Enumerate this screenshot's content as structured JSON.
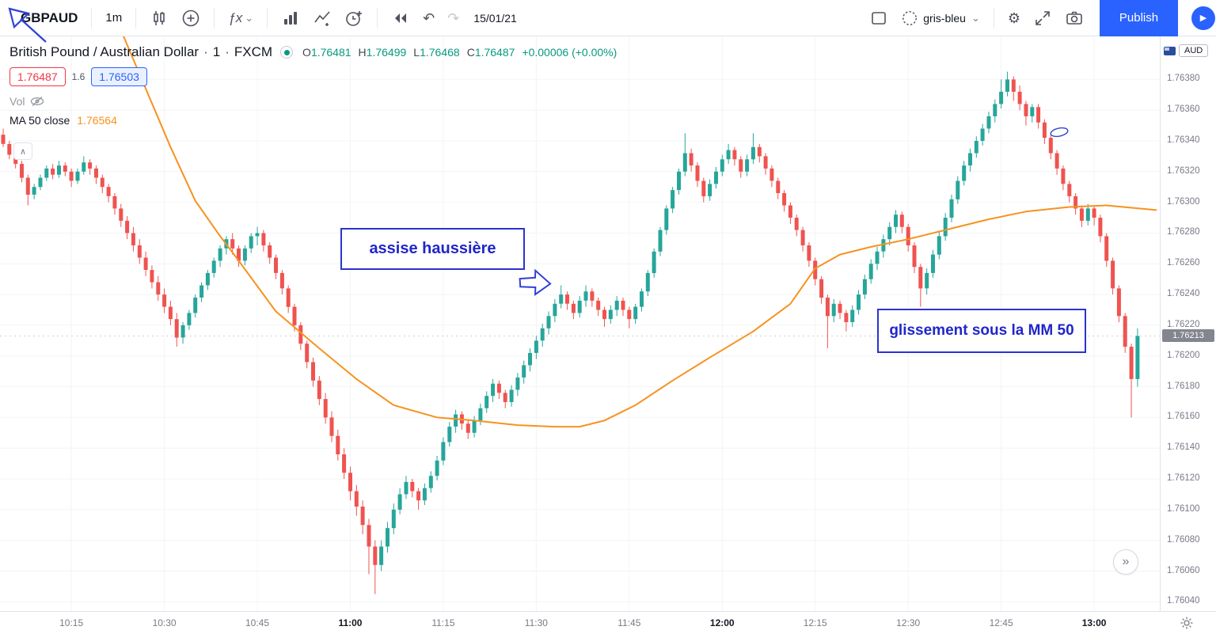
{
  "toolbar": {
    "symbol": "GBPAUD",
    "interval": "1m",
    "indicators_label": "ƒx",
    "date": "15/01/21",
    "layout_name": "gris-bleu",
    "publish_label": "Publish"
  },
  "icons": {
    "undo": "↶",
    "redo": "↷",
    "gear": "⚙",
    "chevron_down": "⌄",
    "scroll_right": "»",
    "collapse": "∧",
    "play": "▶"
  },
  "legend": {
    "name": "British Pound / Australian Dollar",
    "sep": "·",
    "interval": "1",
    "exchange": "FXCM",
    "ohlc": [
      {
        "label": "O",
        "value": "1.76481"
      },
      {
        "label": "H",
        "value": "1.76499"
      },
      {
        "label": "L",
        "value": "1.76468"
      },
      {
        "label": "C",
        "value": "1.76487"
      }
    ],
    "change": "+0.00006 (+0.00%)",
    "bid": "1.76487",
    "spread": "1.6",
    "ask": "1.76503",
    "vol_label": "Vol",
    "ma_label": "MA 50 close",
    "ma_value": "1.76564"
  },
  "annotations": {
    "box1": "assise haussière",
    "box2": "glissement sous la MM 50"
  },
  "axes": {
    "currency": "AUD"
  },
  "colors": {
    "accent": "#2962ff",
    "annotation_blue": "#2b33cf",
    "last_price_bg": "#83868e"
  },
  "chart_data": {
    "type": "candlestick",
    "symbol": "GBPAUD",
    "title": "British Pound / Australian Dollar · 1 · FXCM",
    "interval_minutes": 1,
    "start_time": "10:04",
    "end_time": "13:07",
    "price_base": 1.76,
    "pip": 1e-05,
    "visible_price_range": [
      1.76034,
      1.76408
    ],
    "last_price": 1.76213,
    "last_price_label": "1.76213",
    "up_color": "#26a69a",
    "down_color": "#ef5350",
    "ma50_color": "#f7921e",
    "ma50_label": "MA 50 close",
    "price_ticks": [
      "1.76380",
      "1.76360",
      "1.76340",
      "1.76320",
      "1.76300",
      "1.76280",
      "1.76260",
      "1.76240",
      "1.76220",
      "1.76200",
      "1.76180",
      "1.76160",
      "1.76140",
      "1.76120",
      "1.76100",
      "1.76080",
      "1.76060",
      "1.76040"
    ],
    "time_ticks": [
      {
        "label": "10:15",
        "minute_index": 11,
        "bold": false
      },
      {
        "label": "10:30",
        "minute_index": 26,
        "bold": false
      },
      {
        "label": "10:45",
        "minute_index": 41,
        "bold": false
      },
      {
        "label": "11:00",
        "minute_index": 56,
        "bold": true
      },
      {
        "label": "11:15",
        "minute_index": 71,
        "bold": false
      },
      {
        "label": "11:30",
        "minute_index": 86,
        "bold": false
      },
      {
        "label": "11:45",
        "minute_index": 101,
        "bold": false
      },
      {
        "label": "12:00",
        "minute_index": 116,
        "bold": true
      },
      {
        "label": "12:15",
        "minute_index": 131,
        "bold": false
      },
      {
        "label": "12:30",
        "minute_index": 146,
        "bold": false
      },
      {
        "label": "12:45",
        "minute_index": 161,
        "bold": false
      },
      {
        "label": "13:00",
        "minute_index": 176,
        "bold": true
      }
    ],
    "candles_pips": [
      [
        344,
        348,
        336,
        338
      ],
      [
        338,
        340,
        328,
        331
      ],
      [
        331,
        334,
        322,
        325
      ],
      [
        325,
        327,
        313,
        316
      ],
      [
        316,
        318,
        298,
        305
      ],
      [
        305,
        312,
        302,
        310
      ],
      [
        310,
        318,
        308,
        316
      ],
      [
        316,
        324,
        314,
        322
      ],
      [
        322,
        325,
        315,
        318
      ],
      [
        318,
        327,
        316,
        324
      ],
      [
        324,
        326,
        317,
        320
      ],
      [
        320,
        322,
        310,
        314
      ],
      [
        314,
        322,
        312,
        320
      ],
      [
        320,
        330,
        318,
        326
      ],
      [
        326,
        328,
        318,
        322
      ],
      [
        322,
        324,
        312,
        316
      ],
      [
        316,
        318,
        306,
        310
      ],
      [
        310,
        312,
        300,
        304
      ],
      [
        304,
        306,
        292,
        296
      ],
      [
        296,
        299,
        284,
        288
      ],
      [
        288,
        291,
        276,
        280
      ],
      [
        280,
        284,
        268,
        272
      ],
      [
        272,
        276,
        260,
        264
      ],
      [
        264,
        268,
        252,
        256
      ],
      [
        256,
        259,
        244,
        248
      ],
      [
        248,
        252,
        236,
        240
      ],
      [
        240,
        244,
        228,
        232
      ],
      [
        232,
        236,
        220,
        224
      ],
      [
        224,
        228,
        206,
        212
      ],
      [
        212,
        222,
        208,
        220
      ],
      [
        220,
        230,
        217,
        228
      ],
      [
        228,
        240,
        225,
        238
      ],
      [
        238,
        248,
        235,
        246
      ],
      [
        246,
        256,
        243,
        254
      ],
      [
        254,
        264,
        251,
        262
      ],
      [
        262,
        272,
        258,
        270
      ],
      [
        270,
        278,
        266,
        276
      ],
      [
        276,
        280,
        266,
        270
      ],
      [
        270,
        272,
        258,
        262
      ],
      [
        262,
        272,
        259,
        270
      ],
      [
        270,
        280,
        267,
        278
      ],
      [
        278,
        284,
        272,
        280
      ],
      [
        280,
        282,
        268,
        272
      ],
      [
        272,
        274,
        260,
        264
      ],
      [
        264,
        266,
        250,
        254
      ],
      [
        254,
        256,
        240,
        244
      ],
      [
        244,
        246,
        228,
        232
      ],
      [
        232,
        234,
        216,
        220
      ],
      [
        220,
        222,
        204,
        208
      ],
      [
        208,
        210,
        192,
        196
      ],
      [
        196,
        199,
        180,
        184
      ],
      [
        184,
        187,
        168,
        172
      ],
      [
        172,
        176,
        156,
        160
      ],
      [
        160,
        164,
        144,
        148
      ],
      [
        148,
        152,
        132,
        136
      ],
      [
        136,
        140,
        120,
        124
      ],
      [
        124,
        128,
        106,
        112
      ],
      [
        112,
        116,
        96,
        102
      ],
      [
        102,
        106,
        84,
        90
      ],
      [
        90,
        94,
        58,
        76
      ],
      [
        76,
        80,
        45,
        64
      ],
      [
        64,
        80,
        60,
        76
      ],
      [
        76,
        92,
        72,
        88
      ],
      [
        88,
        104,
        84,
        100
      ],
      [
        100,
        114,
        97,
        110
      ],
      [
        110,
        122,
        107,
        118
      ],
      [
        118,
        120,
        108,
        112
      ],
      [
        112,
        114,
        100,
        106
      ],
      [
        106,
        117,
        103,
        114
      ],
      [
        114,
        125,
        111,
        122
      ],
      [
        122,
        135,
        119,
        132
      ],
      [
        132,
        147,
        129,
        144
      ],
      [
        144,
        157,
        141,
        154
      ],
      [
        154,
        165,
        150,
        162
      ],
      [
        162,
        164,
        152,
        156
      ],
      [
        156,
        158,
        146,
        150
      ],
      [
        150,
        161,
        147,
        158
      ],
      [
        158,
        169,
        155,
        166
      ],
      [
        166,
        177,
        163,
        174
      ],
      [
        174,
        185,
        170,
        182
      ],
      [
        182,
        184,
        172,
        176
      ],
      [
        176,
        178,
        166,
        170
      ],
      [
        170,
        181,
        167,
        178
      ],
      [
        178,
        189,
        174,
        186
      ],
      [
        186,
        197,
        182,
        194
      ],
      [
        194,
        205,
        190,
        202
      ],
      [
        202,
        213,
        198,
        210
      ],
      [
        210,
        221,
        206,
        218
      ],
      [
        218,
        229,
        214,
        226
      ],
      [
        226,
        237,
        222,
        234
      ],
      [
        234,
        246,
        231,
        240
      ],
      [
        240,
        242,
        230,
        234
      ],
      [
        234,
        236,
        224,
        228
      ],
      [
        228,
        239,
        225,
        236
      ],
      [
        236,
        246,
        232,
        242
      ],
      [
        242,
        244,
        232,
        236
      ],
      [
        236,
        238,
        226,
        230
      ],
      [
        230,
        232,
        219,
        224
      ],
      [
        224,
        233,
        221,
        230
      ],
      [
        230,
        239,
        226,
        236
      ],
      [
        236,
        238,
        226,
        230
      ],
      [
        230,
        232,
        218,
        224
      ],
      [
        224,
        234,
        221,
        232
      ],
      [
        232,
        244,
        229,
        242
      ],
      [
        242,
        256,
        239,
        254
      ],
      [
        254,
        270,
        251,
        268
      ],
      [
        268,
        284,
        265,
        282
      ],
      [
        282,
        298,
        279,
        296
      ],
      [
        296,
        310,
        293,
        308
      ],
      [
        308,
        322,
        305,
        320
      ],
      [
        320,
        345,
        317,
        332
      ],
      [
        332,
        335,
        320,
        324
      ],
      [
        324,
        326,
        310,
        314
      ],
      [
        314,
        316,
        300,
        304
      ],
      [
        304,
        315,
        301,
        312
      ],
      [
        312,
        323,
        309,
        320
      ],
      [
        320,
        331,
        317,
        328
      ],
      [
        328,
        338,
        325,
        334
      ],
      [
        334,
        336,
        324,
        328
      ],
      [
        328,
        330,
        316,
        320
      ],
      [
        320,
        331,
        317,
        328
      ],
      [
        328,
        345,
        325,
        336
      ],
      [
        336,
        338,
        326,
        330
      ],
      [
        330,
        332,
        318,
        322
      ],
      [
        322,
        324,
        310,
        314
      ],
      [
        314,
        316,
        302,
        306
      ],
      [
        306,
        308,
        294,
        298
      ],
      [
        298,
        300,
        286,
        290
      ],
      [
        290,
        292,
        278,
        282
      ],
      [
        282,
        284,
        268,
        272
      ],
      [
        272,
        274,
        258,
        262
      ],
      [
        262,
        264,
        246,
        250
      ],
      [
        250,
        252,
        234,
        238
      ],
      [
        238,
        240,
        205,
        226
      ],
      [
        226,
        237,
        222,
        234
      ],
      [
        234,
        236,
        224,
        228
      ],
      [
        228,
        230,
        216,
        222
      ],
      [
        222,
        233,
        219,
        230
      ],
      [
        230,
        243,
        227,
        240
      ],
      [
        240,
        253,
        237,
        250
      ],
      [
        250,
        263,
        247,
        260
      ],
      [
        260,
        271,
        256,
        268
      ],
      [
        268,
        279,
        264,
        276
      ],
      [
        276,
        287,
        272,
        284
      ],
      [
        284,
        295,
        280,
        292
      ],
      [
        292,
        294,
        280,
        284
      ],
      [
        284,
        286,
        268,
        272
      ],
      [
        272,
        274,
        254,
        258
      ],
      [
        258,
        260,
        232,
        244
      ],
      [
        244,
        257,
        240,
        254
      ],
      [
        254,
        269,
        251,
        266
      ],
      [
        266,
        281,
        263,
        278
      ],
      [
        278,
        293,
        275,
        290
      ],
      [
        290,
        305,
        287,
        302
      ],
      [
        302,
        317,
        299,
        314
      ],
      [
        314,
        327,
        311,
        324
      ],
      [
        324,
        335,
        320,
        332
      ],
      [
        332,
        343,
        329,
        340
      ],
      [
        340,
        351,
        337,
        348
      ],
      [
        348,
        359,
        345,
        356
      ],
      [
        356,
        367,
        352,
        364
      ],
      [
        364,
        380,
        361,
        372
      ],
      [
        372,
        385,
        369,
        380
      ],
      [
        380,
        382,
        366,
        372
      ],
      [
        372,
        376,
        360,
        364
      ],
      [
        364,
        366,
        350,
        356
      ],
      [
        356,
        364,
        352,
        362
      ],
      [
        362,
        364,
        348,
        352
      ],
      [
        352,
        354,
        338,
        342
      ],
      [
        342,
        344,
        328,
        332
      ],
      [
        332,
        334,
        318,
        322
      ],
      [
        322,
        324,
        308,
        312
      ],
      [
        312,
        314,
        300,
        304
      ],
      [
        304,
        306,
        292,
        296
      ],
      [
        296,
        298,
        284,
        288
      ],
      [
        288,
        299,
        285,
        296
      ],
      [
        296,
        298,
        285,
        290
      ],
      [
        290,
        292,
        274,
        278
      ],
      [
        278,
        280,
        258,
        262
      ],
      [
        262,
        264,
        240,
        244
      ],
      [
        244,
        246,
        222,
        226
      ],
      [
        226,
        228,
        202,
        206
      ],
      [
        206,
        208,
        160,
        185
      ],
      [
        185,
        218,
        180,
        213
      ]
    ],
    "ma50_points_pips": [
      [
        19,
        412
      ],
      [
        23,
        374
      ],
      [
        27,
        336
      ],
      [
        31,
        301
      ],
      [
        35,
        278
      ],
      [
        38,
        262
      ],
      [
        44,
        229
      ],
      [
        51,
        205
      ],
      [
        57,
        185
      ],
      [
        63,
        168
      ],
      [
        70,
        160
      ],
      [
        76,
        158
      ],
      [
        83,
        155
      ],
      [
        89,
        154
      ],
      [
        93,
        154
      ],
      [
        97,
        158
      ],
      [
        102,
        168
      ],
      [
        108,
        184
      ],
      [
        114,
        199
      ],
      [
        121,
        216
      ],
      [
        127,
        234
      ],
      [
        131,
        257
      ],
      [
        135,
        266
      ],
      [
        140,
        271
      ],
      [
        146,
        276
      ],
      [
        153,
        283
      ],
      [
        159,
        289
      ],
      [
        165,
        294
      ],
      [
        172,
        297
      ],
      [
        178,
        298
      ],
      [
        186,
        295
      ]
    ]
  }
}
